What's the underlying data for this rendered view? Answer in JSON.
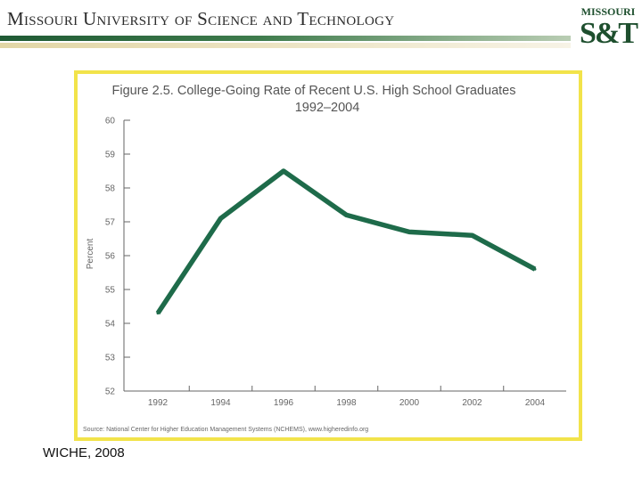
{
  "header": {
    "title": "Missouri University of Science and Technology",
    "logo_top": "MISSOURI",
    "logo_main": "S&T",
    "colors": {
      "green": "#1e4f2e",
      "tan": "#e2d6a6"
    }
  },
  "figure": {
    "border_color": "#f2e34a",
    "line_color": "#1e6b4a"
  },
  "chart_data": {
    "type": "line",
    "title": "Figure 2.5.  College-Going Rate of Recent U.S. High School Graduates",
    "subtitle": "1992–2004",
    "xlabel": "",
    "ylabel": "Percent",
    "x": [
      1992,
      1994,
      1996,
      1998,
      2000,
      2002,
      2004
    ],
    "x_tick_labels": [
      "1992",
      "1994",
      "1996",
      "1998",
      "2000",
      "2002",
      "2004"
    ],
    "y_tick_labels": [
      "60",
      "59",
      "58",
      "57",
      "56",
      "55",
      "54",
      "53",
      "52"
    ],
    "ylim": [
      52,
      60
    ],
    "series": [
      {
        "name": "College-Going Rate",
        "values": [
          54.3,
          57.1,
          58.5,
          57.2,
          56.7,
          56.6,
          55.6
        ]
      }
    ],
    "source": "Source: National Center for Higher Education Management Systems (NCHEMS), www.higheredinfo.org"
  },
  "caption": "WICHE, 2008"
}
